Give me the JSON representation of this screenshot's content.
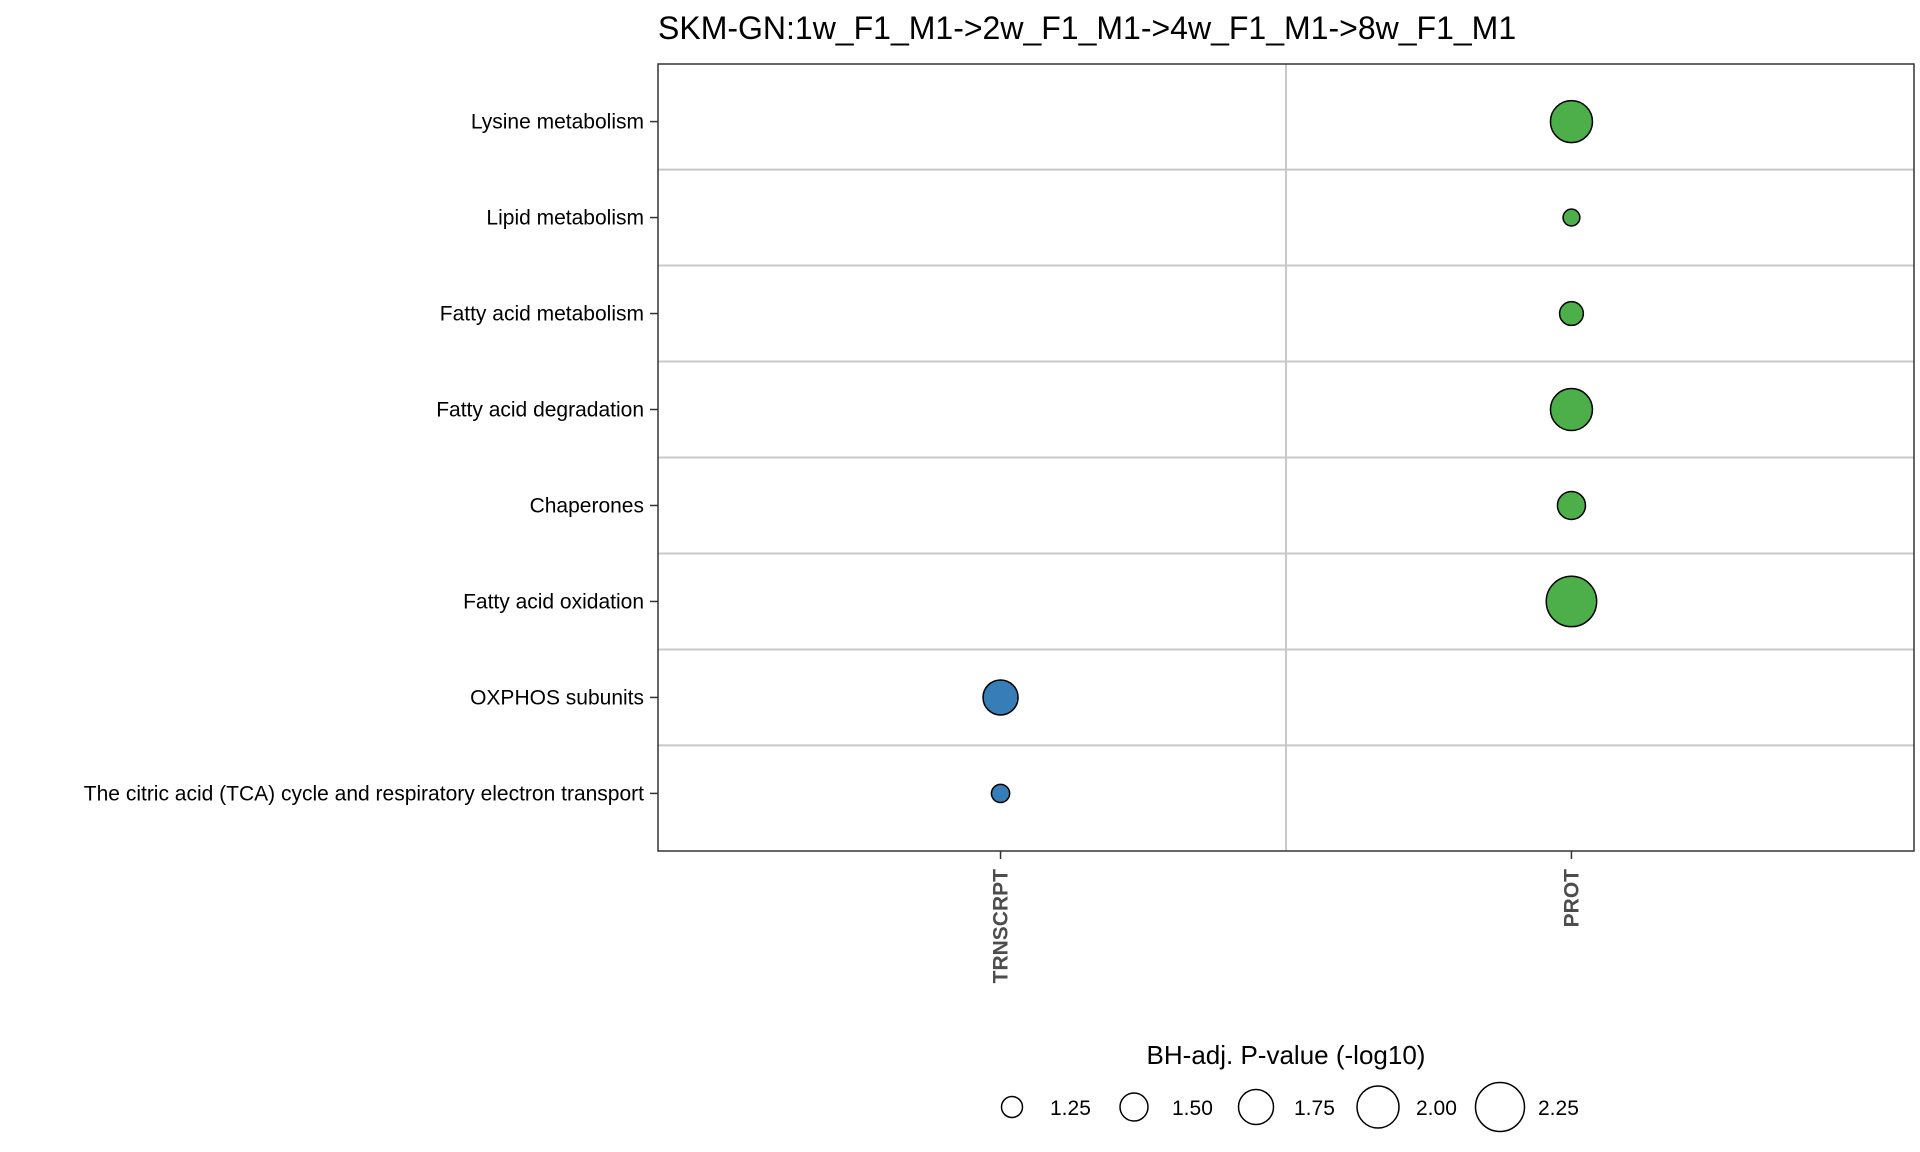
{
  "chart_data": {
    "type": "scatter",
    "title": "SKM-GN:1w_F1_M1->2w_F1_M1->4w_F1_M1->8w_F1_M1",
    "x_categories": [
      "TRNSCRPT",
      "PROT"
    ],
    "y_categories": [
      "Lysine metabolism",
      "Lipid metabolism",
      "Fatty acid metabolism",
      "Fatty acid degradation",
      "Chaperones",
      "Fatty acid oxidation",
      "OXPHOS subunits",
      "The citric acid (TCA) cycle and respiratory electron transport"
    ],
    "points": [
      {
        "x": "PROT",
        "y": "Lysine metabolism",
        "size": 2.0,
        "color": "#4daf4a"
      },
      {
        "x": "PROT",
        "y": "Lipid metabolism",
        "size": 1.1,
        "color": "#4daf4a"
      },
      {
        "x": "PROT",
        "y": "Fatty acid metabolism",
        "size": 1.35,
        "color": "#4daf4a"
      },
      {
        "x": "PROT",
        "y": "Fatty acid degradation",
        "size": 2.0,
        "color": "#4daf4a"
      },
      {
        "x": "PROT",
        "y": "Chaperones",
        "size": 1.5,
        "color": "#4daf4a"
      },
      {
        "x": "PROT",
        "y": "Fatty acid oxidation",
        "size": 2.3,
        "color": "#4daf4a"
      },
      {
        "x": "TRNSCRPT",
        "y": "OXPHOS subunits",
        "size": 1.75,
        "color": "#377eb8"
      },
      {
        "x": "TRNSCRPT",
        "y": "The citric acid (TCA) cycle and respiratory electron transport",
        "size": 1.15,
        "color": "#377eb8"
      }
    ],
    "legend": {
      "title": "BH-adj. P-value (-log10)",
      "placement": "bottom",
      "values": [
        1.25,
        1.5,
        1.75,
        2.0,
        2.25
      ],
      "labels": [
        "1.25",
        "1.50",
        "1.75",
        "2.00",
        "2.25"
      ]
    },
    "grid": true
  }
}
